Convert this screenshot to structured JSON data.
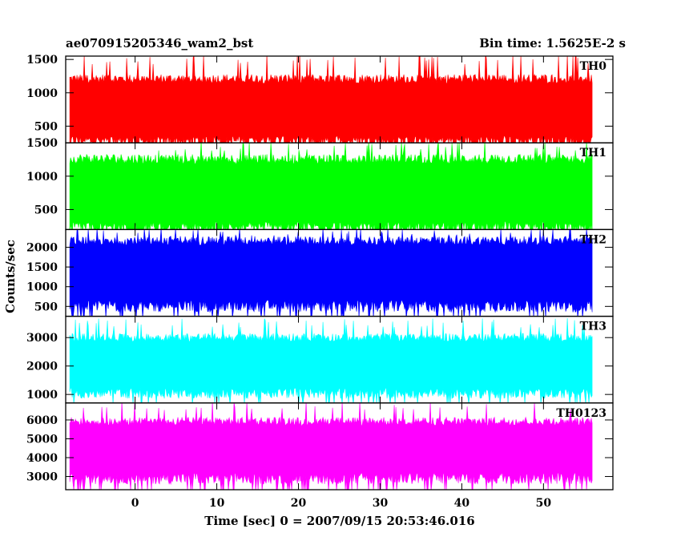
{
  "header": {
    "title": "ae070915205346_wam2_bst",
    "bin_time": "Bin time: 1.5625E-2 s"
  },
  "axes": {
    "ylabel": "Counts/sec",
    "xlabel": "Time [sec] 0 = 2007/09/15 20:53:46.016"
  },
  "chart_data": {
    "type": "line",
    "xlim": [
      -8.5,
      58.5
    ],
    "x_ticks": [
      0,
      10,
      20,
      30,
      40,
      50
    ],
    "data_range": [
      -8,
      56
    ],
    "panels": [
      {
        "name": "TH0",
        "color": "#ff0000",
        "ylim": [
          250,
          1550
        ],
        "y_ticks": [
          500,
          1000,
          1500
        ],
        "baseline": 660,
        "envelope": [
          [
            -8,
            1230,
            90
          ],
          [
            56,
            1230,
            90
          ]
        ],
        "min_typical": 170,
        "spike_max": 1560
      },
      {
        "name": "TH1",
        "color": "#00ff00",
        "ylim": [
          200,
          1500
        ],
        "y_ticks": [
          500,
          1000,
          1500
        ],
        "baseline": 700,
        "envelope": [
          [
            -8,
            1280,
            100
          ],
          [
            56,
            1280,
            100
          ]
        ],
        "min_typical": 100,
        "spike_max": 1500
      },
      {
        "name": "TH2",
        "color": "#0000ff",
        "ylim": [
          250,
          2450
        ],
        "y_ticks": [
          500,
          1000,
          1500,
          2000
        ],
        "baseline": 1300,
        "envelope": [
          [
            -8,
            2200,
            150
          ],
          [
            56,
            2200,
            150
          ]
        ],
        "min_typical": 300,
        "spike_max": 2450
      },
      {
        "name": "TH3",
        "color": "#00ffff",
        "ylim": [
          700,
          3750
        ],
        "y_ticks": [
          1000,
          2000,
          3000
        ],
        "baseline": 1950,
        "envelope": [
          [
            -8,
            3050,
            200
          ],
          [
            56,
            3050,
            200
          ]
        ],
        "min_typical": 800,
        "spike_max": 3600
      },
      {
        "name": "TH0123",
        "color": "#ff00ff",
        "ylim": [
          2300,
          6900
        ],
        "y_ticks": [
          3000,
          4000,
          5000,
          6000
        ],
        "baseline": 4400,
        "envelope": [
          [
            -8,
            6000,
            300
          ],
          [
            56,
            6000,
            300
          ]
        ],
        "min_typical": 2500,
        "spike_max": 6900
      }
    ]
  }
}
